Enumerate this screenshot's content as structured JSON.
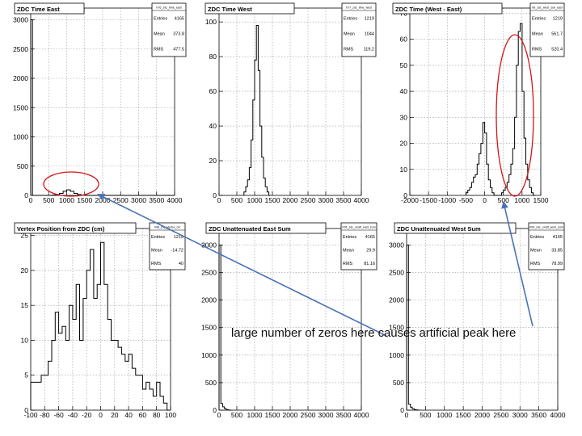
{
  "chart_data": [
    {
      "type": "histogram",
      "title": "ZDC Time East",
      "stats": {
        "name": "h76_zdc_time_east",
        "entries": "4165",
        "mean": "373.8",
        "rms": "477.5"
      },
      "xlim": [
        0,
        4000
      ],
      "ylim": [
        0,
        3200
      ],
      "xticks": [
        "0",
        "500",
        "1000",
        "1500",
        "2000",
        "2500",
        "3000",
        "3500",
        "4000"
      ],
      "yticks": [
        "0",
        "500",
        "1000",
        "1500",
        "2000",
        "2500",
        "3000"
      ],
      "x": [
        0,
        50,
        100,
        500,
        600,
        700,
        800,
        900,
        1000,
        1100,
        1200,
        1300,
        1400,
        1500,
        1600,
        4000
      ],
      "y": [
        3000,
        0,
        0,
        0,
        5,
        15,
        35,
        70,
        95,
        70,
        35,
        15,
        5,
        0,
        0,
        0
      ]
    },
    {
      "type": "histogram",
      "title": "ZDC Time West",
      "stats": {
        "name": "h77_zdc_time_west",
        "entries": "1219",
        "mean": "1044",
        "rms": "119.2"
      },
      "xlim": [
        0,
        4000
      ],
      "ylim": [
        0,
        108
      ],
      "xticks": [
        "0",
        "500",
        "1000",
        "1500",
        "2000",
        "2500",
        "3000",
        "3500",
        "4000"
      ],
      "yticks": [
        "0",
        "20",
        "40",
        "60",
        "80",
        "100"
      ],
      "x": [
        700,
        750,
        800,
        850,
        900,
        950,
        1000,
        1050,
        1100,
        1150,
        1200,
        1250,
        1300,
        1350,
        1400
      ],
      "y": [
        2,
        5,
        9,
        16,
        32,
        55,
        78,
        98,
        72,
        40,
        22,
        10,
        5,
        2,
        0
      ]
    },
    {
      "type": "histogram",
      "title": "ZDC Time (West - East)",
      "stats": {
        "name": "h8_zdc_west_sub_east",
        "entries": "1219",
        "mean": "561.7",
        "rms": "520.4"
      },
      "xlim": [
        -2000,
        1500
      ],
      "ylim": [
        0,
        72
      ],
      "xticks": [
        "-2000",
        "-1500",
        "-1000",
        "-500",
        "0",
        "500",
        "1000",
        "1500"
      ],
      "yticks": [
        "0",
        "10",
        "20",
        "30",
        "40",
        "50",
        "60",
        "70"
      ],
      "x": [
        -500,
        -450,
        -400,
        -350,
        -300,
        -250,
        -200,
        -150,
        -100,
        -50,
        0,
        50,
        100,
        150,
        200,
        250,
        300,
        350,
        400,
        450,
        500,
        550,
        600,
        650,
        700,
        750,
        800,
        850,
        900,
        950,
        1000,
        1050,
        1100,
        1150,
        1200,
        1250,
        1300
      ],
      "y": [
        1,
        2,
        3,
        5,
        7,
        8,
        12,
        16,
        20,
        28,
        24,
        12,
        6,
        3,
        1,
        0,
        0,
        0,
        0,
        1,
        2,
        3,
        5,
        8,
        12,
        18,
        30,
        50,
        63,
        66,
        40,
        22,
        12,
        6,
        3,
        1,
        0
      ]
    },
    {
      "type": "histogram",
      "title": "Vertex Position from ZDC (cm)",
      "stats": {
        "name": "h48_zdc_Vertex_cm",
        "entries": "1219",
        "mean": "-14.72",
        "rms": "40"
      },
      "xlim": [
        -100,
        100
      ],
      "ylim": [
        0,
        26
      ],
      "xticks": [
        "-100",
        "-80",
        "-60",
        "-40",
        "-20",
        "0",
        "20",
        "40",
        "60",
        "80",
        "100"
      ],
      "yticks": [
        "0",
        "5",
        "10",
        "15",
        "20",
        "25"
      ],
      "x": [
        -100,
        -95,
        -90,
        -85,
        -80,
        -75,
        -70,
        -65,
        -60,
        -55,
        -50,
        -45,
        -40,
        -35,
        -30,
        -25,
        -20,
        -15,
        -10,
        -5,
        0,
        5,
        10,
        15,
        20,
        25,
        30,
        35,
        40,
        45,
        50,
        55,
        60,
        65,
        70,
        75,
        80,
        85,
        90,
        95
      ],
      "y": [
        4,
        4,
        4,
        5,
        5,
        7,
        10,
        14,
        11,
        12,
        10,
        15,
        13,
        18,
        10,
        16,
        20,
        23,
        16,
        18,
        24,
        18,
        13,
        10,
        10,
        9,
        8,
        7,
        8,
        6,
        5,
        5,
        3,
        4,
        3,
        2,
        4,
        2,
        1,
        0
      ]
    },
    {
      "type": "histogram",
      "title": "ZDC Unattenuated East Sum",
      "stats": {
        "name": "h05_zdc_unatt_east_sum",
        "entries": "4165",
        "mean": "29.9",
        "rms": "81.16"
      },
      "xlim": [
        0,
        4000
      ],
      "ylim": [
        0,
        3300
      ],
      "xticks": [
        "0",
        "500",
        "1000",
        "1500",
        "2000",
        "2500",
        "3000",
        "3500",
        "4000"
      ],
      "yticks": [
        "0",
        "500",
        "1000",
        "1500",
        "2000",
        "2500",
        "3000"
      ],
      "x": [
        0,
        50,
        100,
        150,
        200,
        250,
        300
      ],
      "y": [
        3000,
        120,
        60,
        30,
        10,
        5,
        0
      ]
    },
    {
      "type": "histogram",
      "title": "ZDC Unattenuated West Sum",
      "stats": {
        "name": "h06_zdc_unatt_west_sum",
        "entries": "4165",
        "mean": "33.85",
        "rms": "78.99"
      },
      "xlim": [
        0,
        4000
      ],
      "ylim": [
        0,
        3300
      ],
      "xticks": [
        "0",
        "500",
        "1000",
        "1500",
        "2000",
        "2500",
        "3000",
        "3500",
        "4000"
      ],
      "yticks": [
        "0",
        "500",
        "1000",
        "1500",
        "2000",
        "2500",
        "3000"
      ],
      "x": [
        0,
        50,
        100,
        150,
        200,
        250,
        300
      ],
      "y": [
        3000,
        110,
        55,
        25,
        10,
        5,
        0
      ]
    }
  ],
  "stat_labels": {
    "entries": "Entries",
    "mean": "Mean",
    "rms": "RMS"
  },
  "annotation": {
    "text": "large number of zeros here causes artificial peak here",
    "arrow_color": "#4a73b5",
    "circle_color": "#d0161b"
  },
  "colors": {
    "line": "#000000",
    "grid": "#9a9a9a",
    "frame_bg": "#ffffff"
  }
}
